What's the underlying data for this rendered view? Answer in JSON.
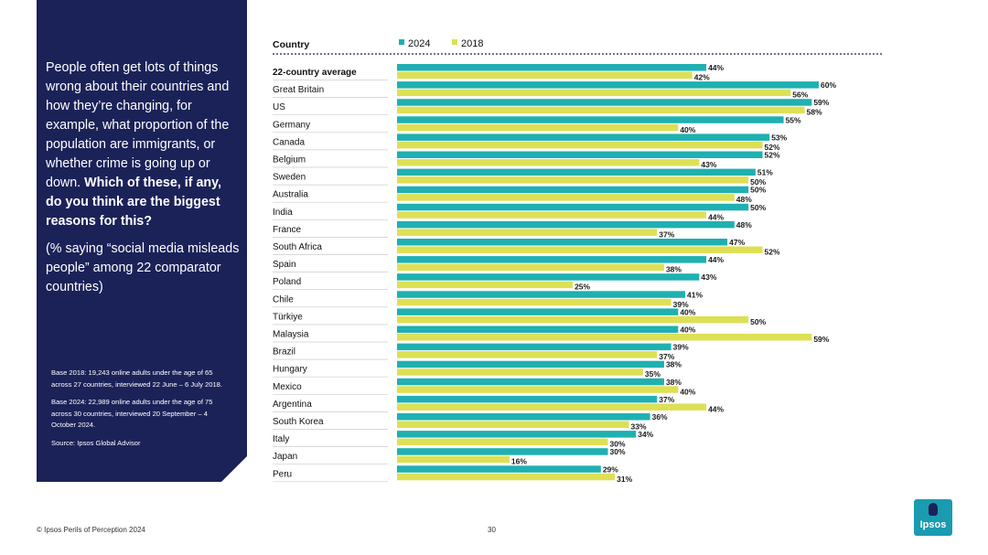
{
  "sidebar": {
    "question_main": "People often get lots of things wrong about their countries and how they’re changing, for example, what proportion of the population are immigrants, or whether crime is going up or down.",
    "question_bold": "Which of these, if any, do you think are the biggest reasons for this?",
    "subquestion": "(% saying “social media misleads people” among 22 comparator countries)",
    "note_base_2018": "Base 2018: 19,243 online adults under the age of 65 across 27 countries, interviewed 22 June – 6 July 2018.",
    "note_base_2024": "Base 2024: 22,989 online adults under the age of 75 across 30 countries, interviewed 20 September – 4 October 2024.",
    "note_source": "Source: Ipsos Global Advisor"
  },
  "chart_data": {
    "type": "bar",
    "orientation": "horizontal",
    "column_header": "Country",
    "categories": [
      "22-country average",
      "Great Britain",
      "US",
      "Germany",
      "Canada",
      "Belgium",
      "Sweden",
      "Australia",
      "India",
      "France",
      "South Africa",
      "Spain",
      "Poland",
      "Chile",
      "Türkiye",
      "Malaysia",
      "Brazil",
      "Hungary",
      "Mexico",
      "Argentina",
      "South Korea",
      "Italy",
      "Japan",
      "Peru"
    ],
    "series": [
      {
        "name": "2024",
        "color": "#1fb0b1",
        "values": [
          44,
          60,
          59,
          55,
          53,
          52,
          51,
          50,
          50,
          48,
          47,
          44,
          43,
          41,
          40,
          40,
          39,
          38,
          38,
          37,
          36,
          34,
          30,
          29
        ]
      },
      {
        "name": "2018",
        "color": "#dde055",
        "values": [
          42,
          56,
          58,
          40,
          52,
          43,
          50,
          48,
          44,
          37,
          52,
          38,
          25,
          39,
          50,
          59,
          37,
          35,
          40,
          44,
          33,
          30,
          16,
          31
        ]
      }
    ],
    "value_suffix": "%",
    "xlim": [
      0,
      60
    ]
  },
  "footer": {
    "copyright": "© Ipsos Perils of Perception 2024",
    "page_number": "30",
    "logo_text": "Ipsos"
  }
}
